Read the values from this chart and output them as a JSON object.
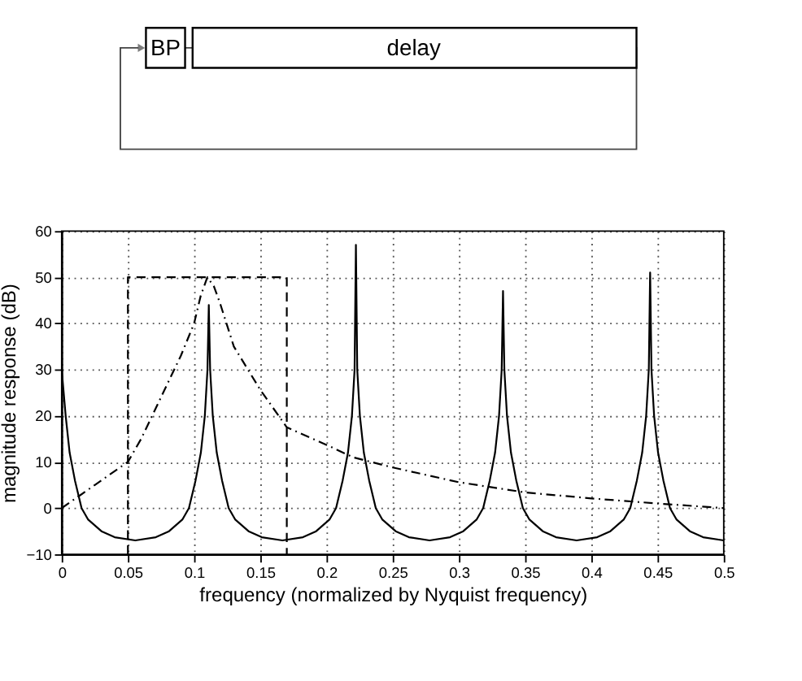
{
  "chart_data": {
    "type": "line",
    "xlabel": "frequency (normalized by Nyquist frequency)",
    "ylabel": "magnitude response (dB)",
    "annotations": [
      "BP",
      "delay"
    ],
    "xlim": [
      0,
      0.5
    ],
    "ylim": [
      -10,
      60
    ],
    "xticks": [
      0,
      0.05,
      0.1,
      0.15,
      0.2,
      0.25,
      0.3,
      0.35,
      0.4,
      0.45,
      0.5
    ],
    "yticks": [
      -10,
      0,
      10,
      20,
      30,
      40,
      50,
      60
    ],
    "grid": true,
    "series": [
      {
        "color": "#000000",
        "line_style": "solid",
        "x": [
          0,
          0.003,
          0.006,
          0.01,
          0.015,
          0.02,
          0.03,
          0.04,
          0.0556,
          0.0711,
          0.0811,
          0.0911,
          0.0961,
          0.1011,
          0.1051,
          0.1081,
          0.1101,
          0.1111,
          0.1121,
          0.1141,
          0.1171,
          0.1211,
          0.1261,
          0.1311,
          0.1411,
          0.1511,
          0.1667,
          0.1822,
          0.1922,
          0.2022,
          0.2072,
          0.2122,
          0.2162,
          0.2192,
          0.2212,
          0.2222,
          0.2232,
          0.2252,
          0.2282,
          0.2322,
          0.2372,
          0.2422,
          0.2522,
          0.2622,
          0.2778,
          0.2933,
          0.3033,
          0.3133,
          0.3183,
          0.3233,
          0.3273,
          0.3303,
          0.3323,
          0.3333,
          0.3343,
          0.3363,
          0.3393,
          0.3433,
          0.3483,
          0.3533,
          0.3633,
          0.3733,
          0.3889,
          0.4044,
          0.4144,
          0.4244,
          0.4294,
          0.4344,
          0.4384,
          0.4414,
          0.4434,
          0.4444,
          0.4454,
          0.4474,
          0.4504,
          0.4544,
          0.4594,
          0.4644,
          0.4744,
          0.4844,
          0.5
        ],
        "values": [
          30,
          20,
          12,
          6,
          0,
          -2.5,
          -5,
          -6.3,
          -7,
          -6.3,
          -5,
          -2.5,
          0,
          6,
          12,
          20,
          30,
          44,
          30,
          20,
          12,
          6,
          0,
          -2.5,
          -5,
          -6.3,
          -7,
          -6.3,
          -5,
          -2.5,
          0,
          6,
          12,
          20,
          30,
          57,
          30,
          20,
          12,
          6,
          0,
          -2.5,
          -5,
          -6.3,
          -7,
          -6.3,
          -5,
          -2.5,
          0,
          6,
          12,
          20,
          30,
          47,
          30,
          20,
          12,
          6,
          0,
          -2.5,
          -5,
          -6.3,
          -7,
          -6.3,
          -5,
          -2.5,
          0,
          6,
          12,
          20,
          30,
          51,
          30,
          20,
          12,
          6,
          0,
          -2.5,
          -5,
          -6.3,
          -7
        ]
      },
      {
        "color": "#000000",
        "line_style": "dashdot",
        "x": [
          0,
          0.025,
          0.05,
          0.06,
          0.075,
          0.09,
          0.1,
          0.105,
          0.11,
          0.115,
          0.12,
          0.13,
          0.15,
          0.17,
          0.2,
          0.22,
          0.25,
          0.3,
          0.35,
          0.4,
          0.45,
          0.5
        ],
        "values": [
          0,
          5,
          10,
          15,
          24,
          33,
          40,
          46,
          50,
          48,
          44,
          35,
          25.6,
          17.5,
          13.7,
          11,
          8.8,
          5.6,
          3.4,
          2.1,
          1,
          0
        ]
      },
      {
        "color": "#000000",
        "line_style": "dashed",
        "x": [
          0.05,
          0.05,
          0.17,
          0.17
        ],
        "values": [
          -10,
          50,
          50,
          -10
        ]
      }
    ]
  }
}
